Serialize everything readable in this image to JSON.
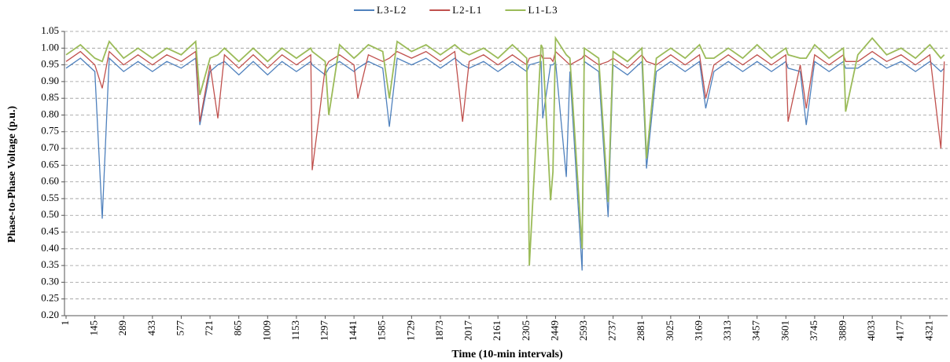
{
  "chart_data": {
    "type": "line",
    "xlabel": "Time (10-min intervals)",
    "ylabel": "Phase-to-Phase Voltage (p.u.)",
    "x": [
      1,
      73,
      145,
      182,
      217,
      289,
      361,
      433,
      505,
      577,
      649,
      670,
      721,
      760,
      793,
      865,
      937,
      1009,
      1081,
      1153,
      1225,
      1232,
      1297,
      1315,
      1369,
      1441,
      1460,
      1513,
      1585,
      1618,
      1657,
      1729,
      1801,
      1873,
      1945,
      1984,
      2017,
      2089,
      2161,
      2233,
      2305,
      2318,
      2377,
      2385,
      2424,
      2436,
      2449,
      2503,
      2521,
      2582,
      2593,
      2665,
      2712,
      2737,
      2809,
      2881,
      2904,
      2953,
      3025,
      3097,
      3169,
      3200,
      3241,
      3313,
      3385,
      3457,
      3529,
      3601,
      3612,
      3673,
      3703,
      3745,
      3817,
      3889,
      3900,
      3961,
      4033,
      4105,
      4177,
      4249,
      4321,
      4376,
      4393
    ],
    "series": [
      {
        "name": "L3-L2",
        "color": "#4f81bd",
        "values": [
          0.94,
          0.97,
          0.93,
          0.49,
          0.97,
          0.93,
          0.96,
          0.93,
          0.96,
          0.94,
          0.97,
          0.77,
          0.93,
          0.95,
          0.96,
          0.92,
          0.96,
          0.92,
          0.96,
          0.93,
          0.96,
          0.95,
          0.92,
          0.94,
          0.96,
          0.93,
          0.94,
          0.96,
          0.94,
          0.765,
          0.97,
          0.95,
          0.97,
          0.94,
          0.97,
          0.95,
          0.94,
          0.96,
          0.93,
          0.96,
          0.93,
          0.95,
          0.96,
          0.79,
          0.95,
          0.95,
          0.96,
          0.615,
          0.93,
          0.335,
          0.96,
          0.93,
          0.495,
          0.95,
          0.92,
          0.96,
          0.64,
          0.93,
          0.96,
          0.93,
          0.96,
          0.82,
          0.93,
          0.96,
          0.93,
          0.96,
          0.93,
          0.96,
          0.94,
          0.93,
          0.77,
          0.96,
          0.93,
          0.96,
          0.94,
          0.94,
          0.97,
          0.94,
          0.96,
          0.93,
          0.96,
          0.93,
          0.94
        ]
      },
      {
        "name": "L2-L1",
        "color": "#c0504d",
        "values": [
          0.96,
          0.99,
          0.95,
          0.88,
          0.99,
          0.95,
          0.98,
          0.95,
          0.98,
          0.96,
          0.99,
          0.78,
          0.95,
          0.79,
          0.98,
          0.94,
          0.98,
          0.94,
          0.98,
          0.95,
          0.98,
          0.635,
          0.94,
          0.96,
          0.98,
          0.95,
          0.85,
          0.98,
          0.96,
          0.97,
          0.99,
          0.97,
          0.99,
          0.96,
          0.99,
          0.78,
          0.96,
          0.98,
          0.95,
          0.98,
          0.95,
          0.97,
          0.98,
          0.97,
          0.97,
          0.96,
          0.99,
          0.96,
          0.95,
          0.97,
          0.98,
          0.95,
          0.96,
          0.97,
          0.94,
          0.98,
          0.96,
          0.95,
          0.98,
          0.95,
          0.98,
          0.85,
          0.95,
          0.98,
          0.95,
          0.98,
          0.95,
          0.98,
          0.78,
          0.95,
          0.82,
          0.98,
          0.95,
          0.98,
          0.96,
          0.96,
          0.99,
          0.96,
          0.98,
          0.95,
          0.98,
          0.7,
          0.96
        ]
      },
      {
        "name": "L1-L3",
        "color": "#9bbb59",
        "values": [
          0.98,
          1.01,
          0.97,
          0.96,
          1.02,
          0.97,
          1.0,
          0.97,
          1.0,
          0.98,
          1.02,
          0.86,
          0.97,
          0.98,
          1.0,
          0.96,
          1.0,
          0.96,
          1.0,
          0.97,
          1.0,
          0.99,
          0.96,
          0.8,
          1.01,
          0.97,
          0.98,
          1.01,
          0.99,
          0.85,
          1.02,
          0.99,
          1.01,
          0.98,
          1.01,
          0.99,
          0.98,
          1.0,
          0.97,
          1.01,
          0.97,
          0.35,
          1.01,
          1.0,
          0.545,
          0.63,
          1.03,
          0.98,
          0.97,
          0.4,
          1.0,
          0.97,
          0.54,
          0.99,
          0.96,
          1.0,
          0.67,
          0.97,
          1.0,
          0.97,
          1.01,
          0.97,
          0.97,
          1.0,
          0.97,
          1.01,
          0.97,
          1.0,
          0.98,
          0.97,
          0.97,
          1.01,
          0.97,
          1.0,
          0.81,
          0.98,
          1.03,
          0.98,
          1.0,
          0.97,
          1.01,
          0.97,
          0.98
        ]
      }
    ],
    "xlim": [
      1,
      4410
    ],
    "xticks": [
      1,
      145,
      289,
      433,
      577,
      721,
      865,
      1009,
      1153,
      1297,
      1441,
      1585,
      1729,
      1873,
      2017,
      2161,
      2305,
      2449,
      2593,
      2737,
      2881,
      3025,
      3169,
      3313,
      3457,
      3601,
      3745,
      3889,
      4033,
      4177,
      4321
    ],
    "ylim": [
      0.2,
      1.05
    ],
    "yticks": [
      {
        "value": 0.2,
        "label": "0.20"
      },
      0.25,
      {
        "value": 0.3,
        "label": "0.30"
      },
      0.35,
      {
        "value": 0.4,
        "label": "0.40"
      },
      0.45,
      {
        "value": 0.5,
        "label": "0.50"
      },
      0.55,
      {
        "value": 0.6,
        "label": "0.60"
      },
      0.65,
      {
        "value": 0.7,
        "label": "0.70"
      },
      0.75,
      {
        "value": 0.8,
        "label": "0.80"
      },
      0.85,
      {
        "value": 0.9,
        "label": "0.90"
      },
      0.95,
      {
        "value": 1.0,
        "label": "1.00"
      },
      1.05
    ],
    "grid": true,
    "legend": "top"
  }
}
